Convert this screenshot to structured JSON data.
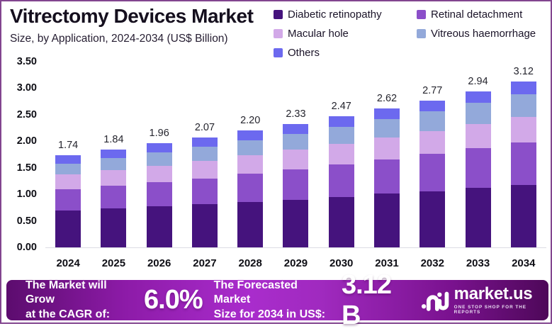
{
  "header": {
    "title": "Vitrectomy Devices Market",
    "subtitle": "Size, by Application, 2024-2034 (US$ Billion)"
  },
  "chart_data": {
    "type": "bar",
    "stacked": true,
    "title": "Vitrectomy Devices Market Size, by Application, 2024-2034 (US$ Billion)",
    "categories": [
      "2024",
      "2025",
      "2026",
      "2027",
      "2028",
      "2029",
      "2030",
      "2031",
      "2032",
      "2033",
      "2034"
    ],
    "series": [
      {
        "name": "Diabetic retinopathy",
        "color": "#45137d",
        "values": [
          0.69,
          0.73,
          0.77,
          0.81,
          0.86,
          0.9,
          0.95,
          1.01,
          1.06,
          1.12,
          1.18
        ]
      },
      {
        "name": "Retinal detachment",
        "color": "#8b4fc9",
        "values": [
          0.4,
          0.43,
          0.46,
          0.49,
          0.53,
          0.57,
          0.61,
          0.65,
          0.7,
          0.75,
          0.8
        ]
      },
      {
        "name": "Macular hole",
        "color": "#d2a9e8",
        "values": [
          0.28,
          0.29,
          0.31,
          0.33,
          0.35,
          0.37,
          0.39,
          0.41,
          0.43,
          0.46,
          0.48
        ]
      },
      {
        "name": "Vitreous haemorrhage",
        "color": "#93a9da",
        "values": [
          0.21,
          0.23,
          0.25,
          0.27,
          0.28,
          0.3,
          0.32,
          0.35,
          0.37,
          0.39,
          0.42
        ]
      },
      {
        "name": "Others",
        "color": "#6c69ef",
        "values": [
          0.16,
          0.16,
          0.17,
          0.17,
          0.18,
          0.19,
          0.2,
          0.2,
          0.21,
          0.22,
          0.24
        ]
      }
    ],
    "totals": [
      "1.74",
      "1.84",
      "1.96",
      "2.07",
      "2.20",
      "2.33",
      "2.47",
      "2.62",
      "2.77",
      "2.94",
      "3.12"
    ],
    "xlabel": "",
    "ylabel": "",
    "ylim": [
      0,
      3.5
    ],
    "yticks": [
      "3.50",
      "3.00",
      "2.50",
      "2.00",
      "1.50",
      "1.00",
      "0.50",
      "0.00"
    ],
    "grid": false,
    "legend_position": "top-right"
  },
  "banner": {
    "cagr_line1": "The Market will Grow",
    "cagr_line2": "at the CAGR of:",
    "cagr_value": "6.0%",
    "forecast_line1": "The Forecasted Market",
    "forecast_line2": "Size for 2034 in US$:",
    "forecast_value": "3.12 B",
    "brand": "market.us",
    "tagline": "ONE STOP SHOP FOR THE REPORTS"
  },
  "colors": {
    "page_border": "#82458f",
    "banner_gradient_edge": "#5c0c6e",
    "banner_gradient_center": "#a92ccc",
    "baseline": "#dcdce4",
    "text_dark": "#150f1e"
  }
}
